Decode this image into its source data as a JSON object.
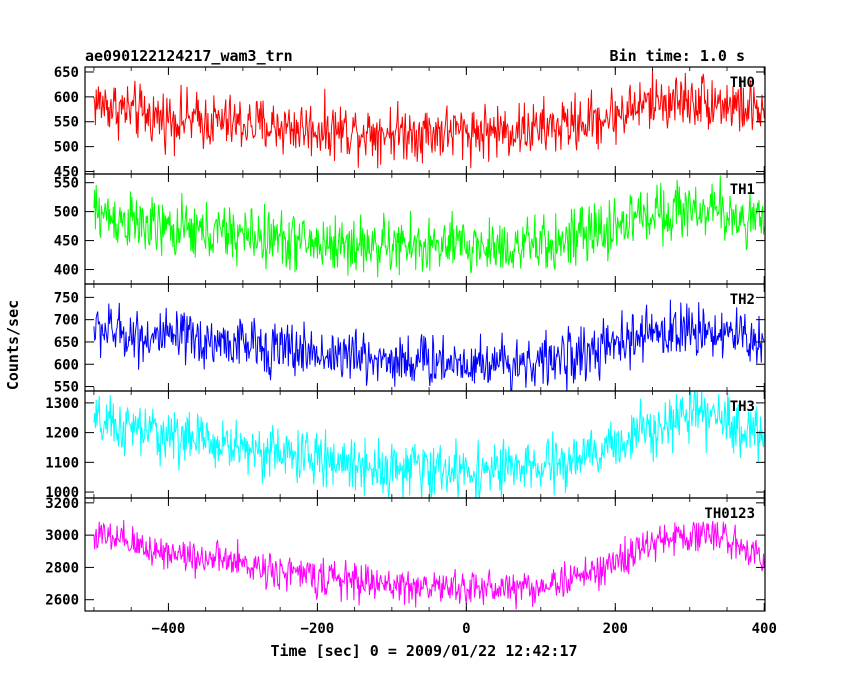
{
  "header": {
    "left": "ae090122124217_wam3_trn",
    "right": "Bin time: 1.0 s"
  },
  "xlabel": "Time [sec] 0 = 2009/01/22 12:42:17",
  "ylabel": "Counts/sec",
  "chart_data": {
    "type": "line",
    "xlim": [
      -512,
      401
    ],
    "x_ticks": [
      -400,
      -200,
      0,
      200,
      400
    ],
    "x_tick_labels": [
      "−400",
      "−200",
      "0",
      "200",
      "400"
    ],
    "bin_time_s": 1.0,
    "grid": false,
    "series": [
      {
        "name": "TH0",
        "color": "#ff0000",
        "ylim": [
          445,
          660
        ],
        "y_ticks": [
          450,
          500,
          550,
          600,
          650
        ],
        "profile": [
          [
            -500,
            590
          ],
          [
            -420,
            560
          ],
          [
            -300,
            545
          ],
          [
            -200,
            535
          ],
          [
            -100,
            530
          ],
          [
            0,
            530
          ],
          [
            100,
            535
          ],
          [
            180,
            555
          ],
          [
            250,
            590
          ],
          [
            320,
            595
          ],
          [
            400,
            570
          ]
        ],
        "noise": 28
      },
      {
        "name": "TH1",
        "color": "#00ff00",
        "ylim": [
          375,
          565
        ],
        "y_ticks": [
          400,
          450,
          500,
          550
        ],
        "profile": [
          [
            -500,
            500
          ],
          [
            -420,
            470
          ],
          [
            -300,
            460
          ],
          [
            -200,
            445
          ],
          [
            -100,
            440
          ],
          [
            0,
            440
          ],
          [
            100,
            440
          ],
          [
            180,
            465
          ],
          [
            250,
            500
          ],
          [
            320,
            505
          ],
          [
            400,
            480
          ]
        ],
        "noise": 25
      },
      {
        "name": "TH2",
        "color": "#0000ff",
        "ylim": [
          540,
          780
        ],
        "y_ticks": [
          550,
          600,
          650,
          700,
          750
        ],
        "profile": [
          [
            -500,
            680
          ],
          [
            -420,
            660
          ],
          [
            -300,
            645
          ],
          [
            -200,
            625
          ],
          [
            -100,
            610
          ],
          [
            0,
            605
          ],
          [
            100,
            605
          ],
          [
            180,
            630
          ],
          [
            250,
            670
          ],
          [
            320,
            680
          ],
          [
            400,
            650
          ]
        ],
        "noise": 30
      },
      {
        "name": "TH3",
        "color": "#00ffff",
        "ylim": [
          980,
          1340
        ],
        "y_ticks": [
          1000,
          1100,
          1200,
          1300
        ],
        "profile": [
          [
            -500,
            1230
          ],
          [
            -420,
            1200
          ],
          [
            -300,
            1150
          ],
          [
            -200,
            1110
          ],
          [
            -100,
            1080
          ],
          [
            0,
            1070
          ],
          [
            100,
            1080
          ],
          [
            180,
            1130
          ],
          [
            250,
            1230
          ],
          [
            320,
            1260
          ],
          [
            400,
            1190
          ]
        ],
        "noise": 45
      },
      {
        "name": "TH0123",
        "color": "#ff00ff",
        "ylim": [
          2530,
          3230
        ],
        "y_ticks": [
          2600,
          2800,
          3000,
          3200
        ],
        "profile": [
          [
            -500,
            3000
          ],
          [
            -420,
            2910
          ],
          [
            -300,
            2820
          ],
          [
            -200,
            2740
          ],
          [
            -100,
            2690
          ],
          [
            0,
            2670
          ],
          [
            100,
            2680
          ],
          [
            180,
            2780
          ],
          [
            250,
            2950
          ],
          [
            320,
            3020
          ],
          [
            400,
            2880
          ]
        ],
        "noise": 55
      }
    ]
  }
}
